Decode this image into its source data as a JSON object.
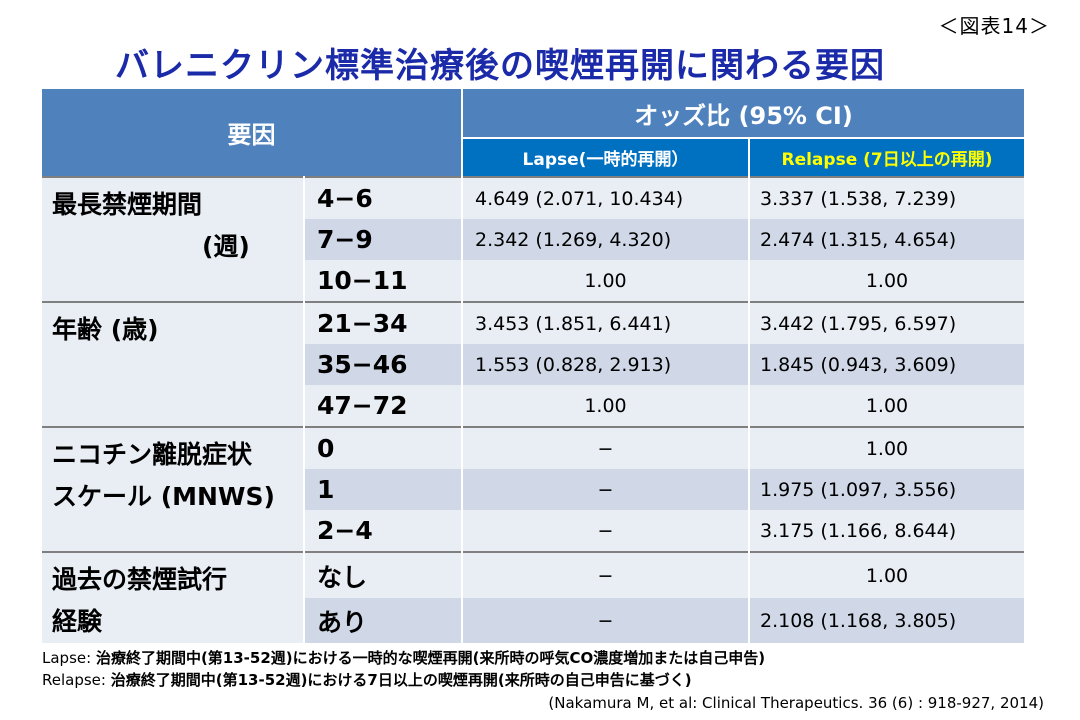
{
  "figure_label": "＜図表14＞",
  "title": "バレニクリン標準治療後の喫煙再開に関わる要因",
  "table": {
    "header_factor": "要因",
    "header_odds": "オッズ比 (95% CI)",
    "header_lapse": "Lapse(一時的再開）",
    "header_relapse": "Relapse (7日以上の再開)",
    "groups": [
      {
        "label": "最長禁煙期間",
        "sublabel": "(週)",
        "rows": [
          {
            "level": "4−6",
            "lapse": "4.649 (2.071, 10.434)",
            "relapse": "3.337 (1.538, 7.239)"
          },
          {
            "level": "7−9",
            "lapse": "2.342 (1.269, 4.320)",
            "relapse": "2.474 (1.315, 4.654)"
          },
          {
            "level": "10−11",
            "lapse": "1.00",
            "relapse": "1.00"
          }
        ]
      },
      {
        "label": "年齢 (歳)",
        "sublabel": "",
        "rows": [
          {
            "level": "21−34",
            "lapse": "3.453 (1.851, 6.441)",
            "relapse": "3.442 (1.795, 6.597)"
          },
          {
            "level": "35−46",
            "lapse": "1.553 (0.828, 2.913)",
            "relapse": "1.845 (0.943, 3.609)"
          },
          {
            "level": "47−72",
            "lapse": "1.00",
            "relapse": "1.00"
          }
        ]
      },
      {
        "label": "ニコチン離脱症状",
        "sublabel": "スケール (MNWS)",
        "rows": [
          {
            "level": "0",
            "lapse": "−",
            "relapse": "1.00"
          },
          {
            "level": "1",
            "lapse": "−",
            "relapse": "1.975 (1.097, 3.556)"
          },
          {
            "level": "2−4",
            "lapse": "−",
            "relapse": "3.175 (1.166, 8.644)"
          }
        ]
      },
      {
        "label": "過去の禁煙試行",
        "sublabel": "経験",
        "rows": [
          {
            "level": "なし",
            "lapse": "−",
            "relapse": "1.00"
          },
          {
            "level": "あり",
            "lapse": "−",
            "relapse": "2.108 (1.168, 3.805)"
          }
        ]
      }
    ]
  },
  "notes": {
    "lapse_term": "Lapse:",
    "lapse_text": "治療終了期間中(第13-52週)における一時的な喫煙再開(来所時の呼気CO濃度増加または自己申告)",
    "relapse_term": "Relapse:",
    "relapse_text": "治療終了期間中(第13-52週)における7日以上の喫煙再開(来所時の自己申告に基づく)"
  },
  "citation": "(Nakamura M, et al: Clinical Therapeutics. 36 (6) : 918-927, 2014)"
}
